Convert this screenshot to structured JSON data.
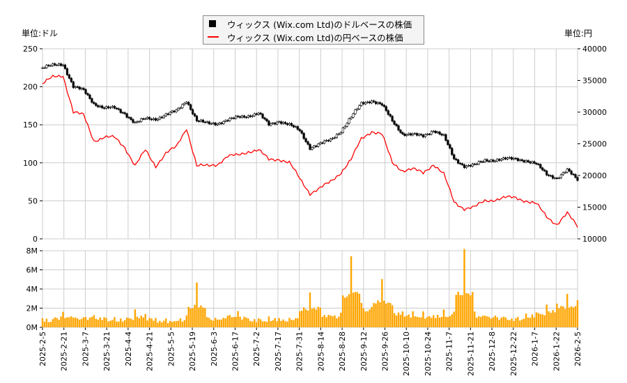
{
  "legend": {
    "usd": "ウィックス (Wix.com Ltd)のドルベースの株価",
    "jpy": "ウィックス (Wix.com Ltd)の円ベースの株価"
  },
  "units": {
    "left": "単位:ドル",
    "right": "単位:円"
  },
  "colors": {
    "usd": "#000000",
    "jpy": "#ff0000",
    "volume": "#ffa500"
  },
  "chart_data": {
    "type": "line",
    "x_tick_labels": [
      "2025-2-5",
      "2025-2-21",
      "2025-3-7",
      "2025-3-21",
      "2025-4-4",
      "2025-4-21",
      "2025-5-5",
      "2025-5-19",
      "2025-6-3",
      "2025-6-17",
      "2025-7-2",
      "2025-7-17",
      "2025-7-31",
      "2025-8-14",
      "2025-8-28",
      "2025-9-12",
      "2025-9-26",
      "2025-10-10",
      "2025-10-24",
      "2025-11-7",
      "2025-11-21",
      "2025-12-8",
      "2025-12-22",
      "2026-1-7",
      "2026-1-22",
      "2026-2-5"
    ],
    "left_axis": {
      "ylim": [
        0,
        250
      ],
      "ticks": [
        "0",
        "50",
        "100",
        "150",
        "200",
        "250"
      ]
    },
    "right_axis": {
      "ylim": [
        10000,
        40000
      ],
      "ticks": [
        "10000",
        "15000",
        "20000",
        "25000",
        "30000",
        "35000",
        "40000"
      ]
    },
    "volume_axis": {
      "ylim": [
        0,
        8
      ],
      "ticks": [
        "0M",
        "2M",
        "4M",
        "6M",
        "8M"
      ]
    },
    "dates": [
      "2025-2-5",
      "2025-2-12",
      "2025-2-19",
      "2025-2-26",
      "2025-3-5",
      "2025-3-12",
      "2025-3-19",
      "2025-3-26",
      "2025-4-2",
      "2025-4-9",
      "2025-4-16",
      "2025-4-23",
      "2025-4-30",
      "2025-5-7",
      "2025-5-14",
      "2025-5-21",
      "2025-5-28",
      "2025-6-4",
      "2025-6-11",
      "2025-6-18",
      "2025-6-25",
      "2025-7-2",
      "2025-7-9",
      "2025-7-16",
      "2025-7-23",
      "2025-7-30",
      "2025-8-6",
      "2025-8-13",
      "2025-8-20",
      "2025-8-27",
      "2025-9-3",
      "2025-9-10",
      "2025-9-17",
      "2025-9-24",
      "2025-10-1",
      "2025-10-8",
      "2025-10-15",
      "2025-10-22",
      "2025-10-29",
      "2025-11-5",
      "2025-11-12",
      "2025-11-19",
      "2025-11-26",
      "2025-12-3",
      "2025-12-10",
      "2025-12-17",
      "2025-12-24",
      "2025-12-31",
      "2026-1-7",
      "2026-1-14",
      "2026-1-21",
      "2026-1-28",
      "2026-2-5"
    ],
    "series": [
      {
        "name": "ウィックス (Wix.com Ltd)のドルベースの株価",
        "axis": "left",
        "values": [
          225,
          228,
          230,
          200,
          195,
          178,
          172,
          172,
          165,
          152,
          158,
          158,
          163,
          168,
          182,
          155,
          152,
          152,
          156,
          160,
          162,
          165,
          150,
          155,
          150,
          142,
          120,
          125,
          130,
          142,
          160,
          178,
          182,
          176,
          155,
          138,
          137,
          135,
          143,
          135,
          105,
          96,
          97,
          103,
          104,
          105,
          105,
          103,
          98,
          85,
          80,
          90,
          78
        ]
      },
      {
        "name": "ウィックス (Wix.com Ltd)の円ベースの株価",
        "axis": "right",
        "values": [
          34500,
          35500,
          35800,
          30000,
          29500,
          25500,
          26000,
          26000,
          24500,
          21500,
          24000,
          21500,
          23500,
          24500,
          27500,
          21500,
          21500,
          21800,
          23000,
          23200,
          23800,
          24000,
          22500,
          22600,
          22000,
          19500,
          17200,
          18000,
          19000,
          20500,
          22500,
          25800,
          27000,
          26500,
          22000,
          20800,
          21000,
          20400,
          21800,
          20200,
          15800,
          14800,
          15000,
          16000,
          16200,
          16500,
          16500,
          16000,
          15500,
          13500,
          12300,
          14000,
          12000
        ]
      },
      {
        "axis": "volume",
        "values": [
          0.8,
          0.7,
          1.5,
          1.0,
          1.0,
          1.2,
          0.9,
          0.8,
          0.7,
          1.5,
          1.2,
          0.7,
          0.6,
          0.6,
          1.0,
          4.6,
          1.0,
          0.8,
          1.2,
          1.5,
          0.8,
          0.7,
          0.8,
          0.9,
          0.6,
          1.5,
          3.4,
          1.8,
          1.2,
          1.4,
          7.4,
          2.5,
          2.0,
          5.0,
          2.0,
          1.5,
          1.4,
          1.3,
          1.2,
          1.5,
          1.5,
          8.0,
          1.5,
          1.2,
          1.2,
          1.0,
          0.8,
          1.2,
          1.5,
          2.0,
          2.3,
          3.2,
          2.5
        ]
      }
    ],
    "grid": true
  }
}
